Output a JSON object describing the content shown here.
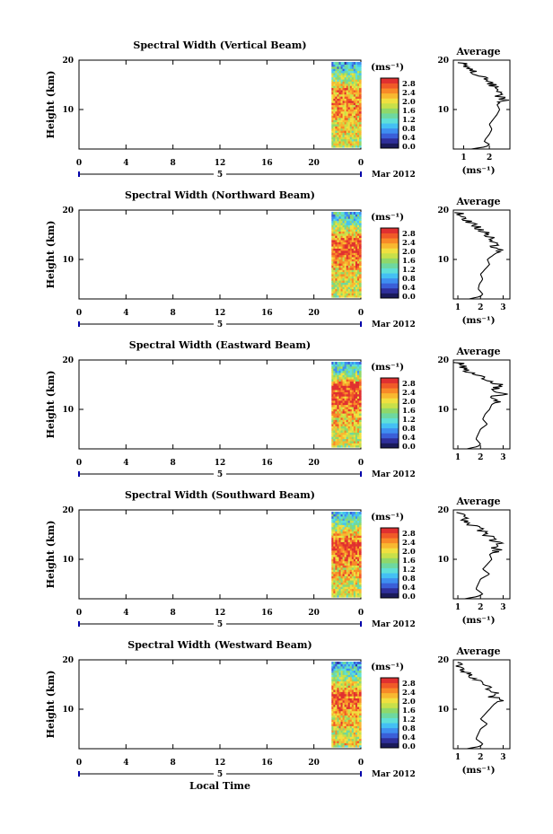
{
  "figure": {
    "x_axis_label": "Local Time",
    "x_ticks": [
      "0",
      "4",
      "8",
      "12",
      "16",
      "20",
      "0"
    ],
    "date_label": "Mar 2012",
    "day_label": "5",
    "colorbar_unit": "(ms⁻¹)",
    "colorbar_ticks": [
      "2.8",
      "2.4",
      "2.0",
      "1.6",
      "1.2",
      "0.8",
      "0.4",
      "0.0"
    ],
    "average_title": "Average",
    "average_unit": "(ms⁻¹)"
  },
  "chart_data": [
    {
      "type": "heatmap",
      "title": "Spectral Width (Vertical Beam)",
      "ylabel": "Height (km)",
      "xlabel": "",
      "y_ticks": [
        "20",
        "10"
      ],
      "xlim": [
        0,
        24
      ],
      "ylim": [
        2,
        20
      ],
      "data_window_hours": [
        21.5,
        24
      ],
      "colorbar": {
        "unit": "ms^-1",
        "range": [
          0,
          3.0
        ]
      },
      "profile": {
        "type": "line",
        "title": "Average",
        "xlabel": "(ms⁻¹)",
        "x_ticks": [
          "1",
          "2"
        ],
        "xlim": [
          0.6,
          2.8
        ],
        "heights_km": [
          2,
          2.5,
          3,
          3.5,
          4,
          5,
          6,
          7,
          8,
          9,
          10,
          11,
          12,
          13,
          14,
          15,
          16,
          17,
          18,
          19,
          19.5
        ],
        "values": [
          1.3,
          1.9,
          2.0,
          1.8,
          1.85,
          2.0,
          2.1,
          2.0,
          2.15,
          2.3,
          2.4,
          2.3,
          2.6,
          2.3,
          2.4,
          2.1,
          1.8,
          1.6,
          1.3,
          1.0,
          0.9
        ]
      }
    },
    {
      "type": "heatmap",
      "title": "Spectral Width (Northward Beam)",
      "ylabel": "Height (km)",
      "xlabel": "",
      "y_ticks": [
        "20",
        "10"
      ],
      "xlim": [
        0,
        24
      ],
      "ylim": [
        2,
        20
      ],
      "data_window_hours": [
        21.5,
        24
      ],
      "colorbar": {
        "unit": "ms^-1",
        "range": [
          0,
          3.0
        ]
      },
      "profile": {
        "type": "line",
        "title": "Average",
        "xlabel": "(ms⁻¹)",
        "x_ticks": [
          "1",
          "2",
          "3"
        ],
        "xlim": [
          0.8,
          3.3
        ],
        "heights_km": [
          2,
          2.5,
          3,
          4,
          5,
          6,
          7,
          8,
          9,
          10,
          11,
          12,
          12.5,
          13,
          14,
          15,
          16,
          17,
          18,
          19,
          19.5
        ],
        "values": [
          1.5,
          2.0,
          2.1,
          1.9,
          1.95,
          2.1,
          2.0,
          2.2,
          2.4,
          2.3,
          2.6,
          2.95,
          2.5,
          2.8,
          2.5,
          2.3,
          2.0,
          1.7,
          1.4,
          1.1,
          1.0
        ]
      }
    },
    {
      "type": "heatmap",
      "title": "Spectral Width (Eastward Beam)",
      "ylabel": "Height (km)",
      "xlabel": "",
      "y_ticks": [
        "20",
        "10"
      ],
      "xlim": [
        0,
        24
      ],
      "ylim": [
        2,
        20
      ],
      "data_window_hours": [
        21.5,
        24
      ],
      "colorbar": {
        "unit": "ms^-1",
        "range": [
          0,
          3.0
        ]
      },
      "profile": {
        "type": "line",
        "title": "Average",
        "xlabel": "",
        "x_ticks": [
          "1",
          "2",
          "3"
        ],
        "xlim": [
          0.8,
          3.3
        ],
        "heights_km": [
          2,
          2.5,
          3,
          4,
          5,
          6,
          7,
          8,
          9,
          10,
          11,
          12,
          12.5,
          13,
          14,
          15,
          16,
          17,
          18,
          19,
          19.5
        ],
        "values": [
          1.4,
          1.9,
          2.0,
          1.8,
          1.9,
          2.0,
          2.3,
          2.1,
          2.2,
          2.4,
          2.5,
          2.9,
          2.4,
          3.1,
          2.6,
          2.9,
          2.2,
          1.8,
          1.3,
          1.2,
          1.0
        ]
      }
    },
    {
      "type": "heatmap",
      "title": "Spectral Width (Southward Beam)",
      "ylabel": "Height (km)",
      "xlabel": "",
      "y_ticks": [
        "20",
        "10"
      ],
      "xlim": [
        0,
        24
      ],
      "ylim": [
        2,
        20
      ],
      "data_window_hours": [
        21.5,
        24
      ],
      "colorbar": {
        "unit": "ms^-1",
        "range": [
          0,
          3.0
        ]
      },
      "profile": {
        "type": "line",
        "title": "Average",
        "xlabel": "(ms⁻¹)",
        "x_ticks": [
          "1",
          "2",
          "3"
        ],
        "xlim": [
          0.8,
          3.3
        ],
        "heights_km": [
          2,
          2.5,
          3,
          4,
          5,
          6,
          7,
          8,
          9,
          10,
          11,
          12,
          12.5,
          13,
          14,
          15,
          16,
          17,
          18,
          19,
          19.5
        ],
        "values": [
          1.3,
          1.9,
          2.1,
          1.8,
          1.9,
          2.0,
          2.4,
          2.1,
          2.3,
          2.5,
          2.4,
          2.8,
          2.6,
          2.9,
          2.5,
          2.3,
          2.0,
          1.6,
          1.3,
          1.1,
          1.0
        ]
      }
    },
    {
      "type": "heatmap",
      "title": "Spectral Width (Westward Beam)",
      "ylabel": "Height (km)",
      "xlabel": "",
      "y_ticks": [
        "20",
        "10"
      ],
      "xlim": [
        0,
        24
      ],
      "ylim": [
        2,
        20
      ],
      "data_window_hours": [
        21.5,
        24
      ],
      "colorbar": {
        "unit": "ms^-1",
        "range": [
          0,
          3.0
        ]
      },
      "profile": {
        "type": "line",
        "title": "Average",
        "xlabel": "(ms⁻¹)",
        "x_ticks": [
          "1",
          "2",
          "3"
        ],
        "xlim": [
          0.8,
          3.3
        ],
        "heights_km": [
          2,
          2.5,
          3,
          4,
          5,
          6,
          7,
          8,
          9,
          10,
          11,
          12,
          12.5,
          13,
          14,
          15,
          16,
          17,
          18,
          19,
          19.5
        ],
        "values": [
          1.4,
          2.0,
          2.1,
          1.8,
          1.9,
          2.0,
          2.3,
          2.0,
          2.2,
          2.4,
          2.6,
          2.9,
          2.5,
          2.8,
          2.4,
          2.1,
          1.8,
          1.5,
          1.2,
          1.0,
          0.9
        ]
      }
    }
  ],
  "colors": {
    "colormap": [
      "#1a1a5a",
      "#2f2f9a",
      "#3a5fd8",
      "#3f8ff0",
      "#44c0f4",
      "#5fe0d8",
      "#6ed8a0",
      "#8fd86a",
      "#c8e04a",
      "#f0e040",
      "#f8b830",
      "#f88a28",
      "#f05a28",
      "#e03030"
    ],
    "time_line": "#0000aa"
  }
}
